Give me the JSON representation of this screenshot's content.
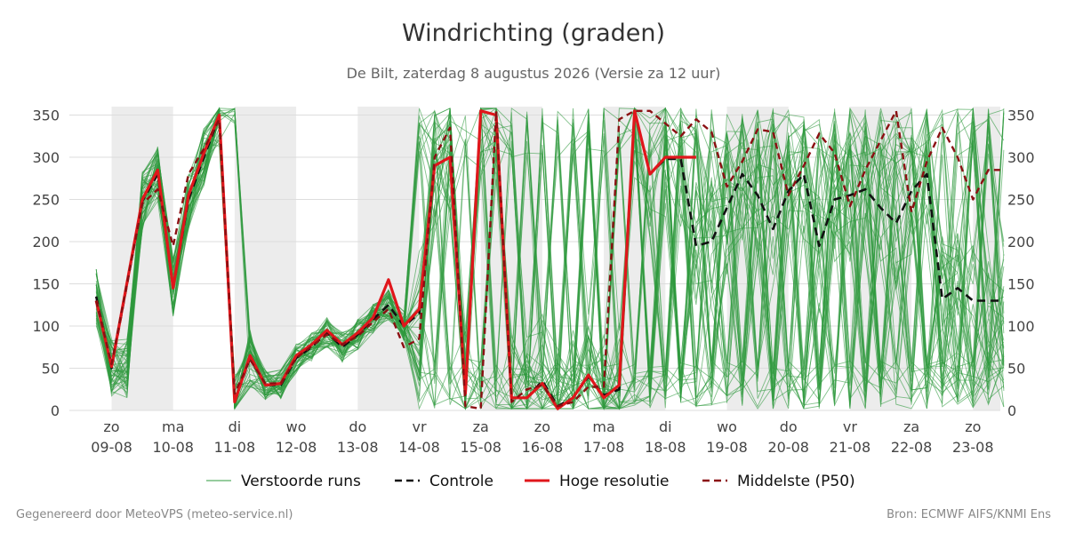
{
  "title": "Windrichting (graden)",
  "subtitle": "De Bilt, zaterdag  8 augustus 2026 (Versie za 12 uur)",
  "footer_left": "Gegenereerd door MeteoVPS (meteo-service.nl)",
  "footer_right": "Bron: ECMWF AIFS/KNMI Ens",
  "colors": {
    "ensemble": "#2e9a3e",
    "control": "#111111",
    "hires": "#e0161b",
    "median": "#8b0f12",
    "weekend_shade": "#ececec",
    "grid": "#dddddd"
  },
  "chart_data": {
    "type": "line",
    "title": "Windrichting (graden)",
    "ylim": [
      0,
      360
    ],
    "yticks": [
      0,
      50,
      100,
      150,
      200,
      250,
      300,
      350
    ],
    "xlim": [
      -0.7,
      14.5
    ],
    "x_unit": "days since 09-08",
    "xticks": [
      {
        "x": 0,
        "day": "zo",
        "date": "09-08"
      },
      {
        "x": 1,
        "day": "ma",
        "date": "10-08"
      },
      {
        "x": 2,
        "day": "di",
        "date": "11-08"
      },
      {
        "x": 3,
        "day": "wo",
        "date": "12-08"
      },
      {
        "x": 4,
        "day": "do",
        "date": "13-08"
      },
      {
        "x": 5,
        "day": "vr",
        "date": "14-08"
      },
      {
        "x": 6,
        "day": "za",
        "date": "15-08"
      },
      {
        "x": 7,
        "day": "zo",
        "date": "16-08"
      },
      {
        "x": 8,
        "day": "ma",
        "date": "17-08"
      },
      {
        "x": 9,
        "day": "di",
        "date": "18-08"
      },
      {
        "x": 10,
        "day": "wo",
        "date": "19-08"
      },
      {
        "x": 11,
        "day": "do",
        "date": "20-08"
      },
      {
        "x": 12,
        "day": "vr",
        "date": "21-08"
      },
      {
        "x": 13,
        "day": "za",
        "date": "22-08"
      },
      {
        "x": 14,
        "day": "zo",
        "date": "23-08"
      }
    ],
    "shaded_bands": [
      [
        0,
        1
      ],
      [
        2,
        3
      ],
      [
        4,
        5
      ],
      [
        6,
        7
      ],
      [
        8,
        9
      ],
      [
        10,
        11
      ],
      [
        12,
        13
      ],
      [
        14,
        14.5
      ]
    ],
    "series": [
      {
        "name": "Controle",
        "style": "dashed",
        "x": [
          -0.25,
          0,
          0.5,
          0.75,
          1.0,
          1.25,
          1.5,
          1.75,
          2.0,
          2.25,
          2.5,
          2.75,
          3.0,
          3.25,
          3.5,
          3.75,
          4.0,
          4.25,
          4.5,
          4.75,
          5.0,
          5.25,
          5.5,
          5.75,
          6.0,
          6.25,
          6.5,
          6.75,
          7.0,
          7.25,
          7.5,
          7.75,
          8.0,
          8.25,
          8.5,
          8.75,
          9.0,
          9.25,
          9.5,
          9.75,
          10.0,
          10.25,
          10.5,
          10.75,
          11.0,
          11.25,
          11.5,
          11.75,
          12.0,
          12.25,
          12.5,
          12.75,
          13.0,
          13.25,
          13.5,
          13.75,
          14.0,
          14.25,
          14.5
        ],
        "values": [
          135,
          50,
          248,
          280,
          145,
          250,
          300,
          348,
          10,
          62,
          30,
          30,
          62,
          75,
          92,
          75,
          90,
          108,
          125,
          100,
          115,
          290,
          300,
          20,
          355,
          350,
          15,
          15,
          35,
          5,
          15,
          40,
          18,
          25,
          355,
          280,
          298,
          298,
          195,
          200,
          240,
          280,
          255,
          215,
          260,
          280,
          195,
          250,
          255,
          262,
          240,
          222,
          260,
          280,
          132,
          145,
          130,
          130,
          130
        ]
      },
      {
        "name": "Hoge resolutie",
        "style": "solid",
        "x": [
          -0.25,
          0,
          0.5,
          0.75,
          1.0,
          1.25,
          1.5,
          1.75,
          2.0,
          2.25,
          2.5,
          2.75,
          3.0,
          3.25,
          3.5,
          3.75,
          4.0,
          4.25,
          4.5,
          4.75,
          5.0,
          5.25,
          5.5,
          5.75,
          6.0,
          6.25,
          6.5,
          6.75,
          7.0,
          7.25,
          7.5,
          7.75,
          8.0,
          8.25,
          8.5,
          8.75,
          9.0,
          9.25,
          9.5
        ],
        "values": [
          130,
          52,
          250,
          285,
          145,
          255,
          305,
          350,
          10,
          65,
          30,
          32,
          65,
          78,
          95,
          78,
          92,
          110,
          155,
          100,
          120,
          290,
          300,
          20,
          355,
          350,
          15,
          15,
          32,
          2,
          15,
          42,
          15,
          30,
          355,
          280,
          300,
          300,
          300
        ]
      },
      {
        "name": "Middelste (P50)",
        "style": "dashed",
        "x": [
          -0.25,
          0,
          0.5,
          0.75,
          1.0,
          1.25,
          1.5,
          1.75,
          2.0,
          2.25,
          2.5,
          2.75,
          3.0,
          3.25,
          3.5,
          3.75,
          4.0,
          4.25,
          4.5,
          4.75,
          5.0,
          5.25,
          5.5,
          5.75,
          6.0,
          6.25,
          6.5,
          6.75,
          7.0,
          7.25,
          7.5,
          7.75,
          8.0,
          8.25,
          8.5,
          8.75,
          9.0,
          9.25,
          9.5,
          9.75,
          10.0,
          10.25,
          10.5,
          10.75,
          11.0,
          11.25,
          11.5,
          11.75,
          12.0,
          12.25,
          12.5,
          12.75,
          13.0,
          13.25,
          13.5,
          13.75,
          14.0,
          14.25,
          14.5
        ],
        "values": [
          130,
          55,
          245,
          262,
          195,
          280,
          310,
          345,
          20,
          60,
          32,
          32,
          62,
          76,
          90,
          78,
          88,
          105,
          120,
          75,
          85,
          300,
          335,
          5,
          2,
          355,
          10,
          25,
          30,
          5,
          10,
          28,
          28,
          345,
          355,
          355,
          340,
          325,
          345,
          330,
          265,
          295,
          333,
          330,
          255,
          290,
          328,
          305,
          242,
          285,
          320,
          355,
          235,
          295,
          335,
          300,
          250,
          285,
          285
        ]
      }
    ],
    "legend": [
      {
        "label": "Verstoorde runs",
        "style": "thin",
        "color_key": "ensemble"
      },
      {
        "label": "Controle",
        "style": "dashed",
        "color_key": "control"
      },
      {
        "label": "Hoge resolutie",
        "style": "solid",
        "color_key": "hires"
      },
      {
        "label": "Middelste (P50)",
        "style": "dashed",
        "color_key": "median"
      }
    ],
    "legend_position": "bottom-center",
    "ensemble": {
      "name": "Verstoorde runs",
      "members": 50,
      "x_step": 0.25
    }
  }
}
